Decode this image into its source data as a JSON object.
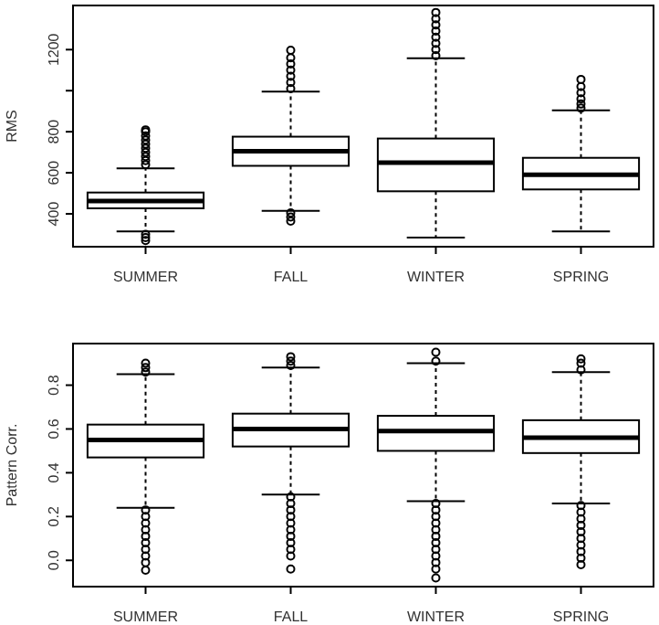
{
  "chart_data": [
    {
      "type": "box",
      "ylabel": "RMS",
      "categories": [
        "SUMMER",
        "FALL",
        "WINTER",
        "SPRING"
      ],
      "ylim": [
        240,
        1415
      ],
      "yticks": [
        400,
        600,
        800,
        {
          "value": 1000,
          "label": null
        },
        1200
      ],
      "boxes": [
        {
          "low": 314,
          "q1": 427,
          "median": 462,
          "q3": 504,
          "high": 622,
          "outliers": [
            640,
            660,
            680,
            700,
            720,
            740,
            760,
            780,
            800,
            809,
            300,
            285,
            270
          ]
        },
        {
          "low": 415,
          "q1": 634,
          "median": 705,
          "q3": 776,
          "high": 996,
          "outliers": [
            1010,
            1040,
            1070,
            1100,
            1130,
            1160,
            1197,
            405,
            385,
            365
          ]
        },
        {
          "low": 284,
          "q1": 510,
          "median": 649,
          "q3": 767,
          "high": 1158,
          "outliers": [
            1170,
            1200,
            1230,
            1260,
            1290,
            1320,
            1350,
            1381
          ]
        },
        {
          "low": 314,
          "q1": 519,
          "median": 590,
          "q3": 673,
          "high": 904,
          "outliers": [
            915,
            935,
            960,
            990,
            1020,
            1055
          ]
        }
      ]
    },
    {
      "type": "box",
      "ylabel": "Pattern Corr.",
      "categories": [
        "SUMMER",
        "FALL",
        "WINTER",
        "SPRING"
      ],
      "ylim": [
        -0.12,
        0.99
      ],
      "yticks": [
        {
          "value": 0,
          "label": "0.0"
        },
        0.2,
        0.4,
        0.6,
        0.8
      ],
      "boxes": [
        {
          "low": 0.24,
          "q1": 0.47,
          "median": 0.55,
          "q3": 0.62,
          "high": 0.85,
          "outliers": [
            0.86,
            0.88,
            0.9,
            0.23,
            0.2,
            0.17,
            0.14,
            0.11,
            0.08,
            0.05,
            0.02,
            -0.01,
            -0.045
          ]
        },
        {
          "low": 0.3,
          "q1": 0.52,
          "median": 0.6,
          "q3": 0.67,
          "high": 0.88,
          "outliers": [
            0.89,
            0.91,
            0.93,
            0.29,
            0.26,
            0.23,
            0.2,
            0.17,
            0.14,
            0.11,
            0.08,
            0.05,
            0.02,
            -0.04
          ]
        },
        {
          "low": 0.27,
          "q1": 0.5,
          "median": 0.59,
          "q3": 0.66,
          "high": 0.9,
          "outliers": [
            0.91,
            0.95,
            0.26,
            0.23,
            0.2,
            0.17,
            0.14,
            0.11,
            0.08,
            0.05,
            0.02,
            -0.01,
            -0.04,
            -0.08
          ]
        },
        {
          "low": 0.26,
          "q1": 0.49,
          "median": 0.56,
          "q3": 0.64,
          "high": 0.86,
          "outliers": [
            0.87,
            0.9,
            0.92,
            0.25,
            0.22,
            0.19,
            0.16,
            0.13,
            0.1,
            0.07,
            0.04,
            0.01,
            -0.02
          ]
        }
      ]
    }
  ]
}
